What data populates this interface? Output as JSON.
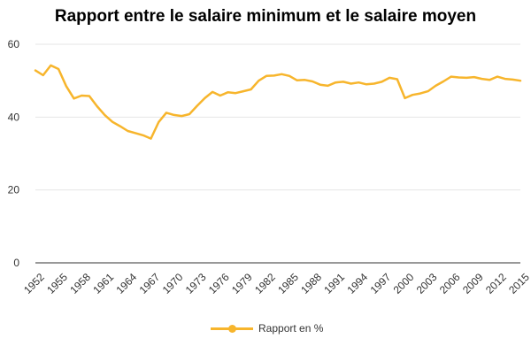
{
  "chart_data": {
    "type": "line",
    "title": "Rapport entre le salaire minimum et le salaire moyen",
    "xlabel": "",
    "ylabel": "",
    "x_ticks": [
      "1952",
      "1955",
      "1958",
      "1961",
      "1964",
      "1967",
      "1970",
      "1973",
      "1976",
      "1979",
      "1982",
      "1985",
      "1988",
      "1991",
      "1994",
      "1997",
      "2000",
      "2003",
      "2006",
      "2009",
      "2012",
      "2015"
    ],
    "y_ticks": [
      0,
      20,
      40,
      60
    ],
    "xlim": [
      1952,
      2015
    ],
    "ylim": [
      0,
      60
    ],
    "grid": true,
    "legend_position": "bottom-center",
    "series": [
      {
        "name": "Rapport en %",
        "color": "#F7B52C",
        "x": [
          1952,
          1953,
          1954,
          1955,
          1956,
          1957,
          1958,
          1959,
          1960,
          1961,
          1962,
          1963,
          1964,
          1965,
          1966,
          1967,
          1968,
          1969,
          1970,
          1971,
          1972,
          1973,
          1974,
          1975,
          1976,
          1977,
          1978,
          1979,
          1980,
          1981,
          1982,
          1983,
          1984,
          1985,
          1986,
          1987,
          1988,
          1989,
          1990,
          1991,
          1992,
          1993,
          1994,
          1995,
          1996,
          1997,
          1998,
          1999,
          2000,
          2001,
          2002,
          2003,
          2004,
          2005,
          2006,
          2007,
          2008,
          2009,
          2010,
          2011,
          2012,
          2013,
          2014,
          2015
        ],
        "values": [
          52.8,
          51.5,
          54.2,
          53.2,
          48.5,
          45.1,
          45.9,
          45.8,
          43.0,
          40.6,
          38.7,
          37.5,
          36.2,
          35.6,
          35.0,
          34.1,
          38.6,
          41.2,
          40.6,
          40.3,
          40.8,
          43.1,
          45.2,
          46.9,
          45.9,
          46.8,
          46.6,
          47.1,
          47.6,
          50.0,
          51.3,
          51.4,
          51.8,
          51.3,
          50.1,
          50.2,
          49.8,
          48.9,
          48.6,
          49.5,
          49.7,
          49.2,
          49.5,
          49.0,
          49.2,
          49.7,
          50.8,
          50.4,
          45.2,
          46.1,
          46.5,
          47.1,
          48.6,
          49.8,
          51.1,
          50.9,
          50.8,
          51.0,
          50.5,
          50.2,
          51.1,
          50.5,
          50.3,
          50.0
        ]
      }
    ]
  }
}
